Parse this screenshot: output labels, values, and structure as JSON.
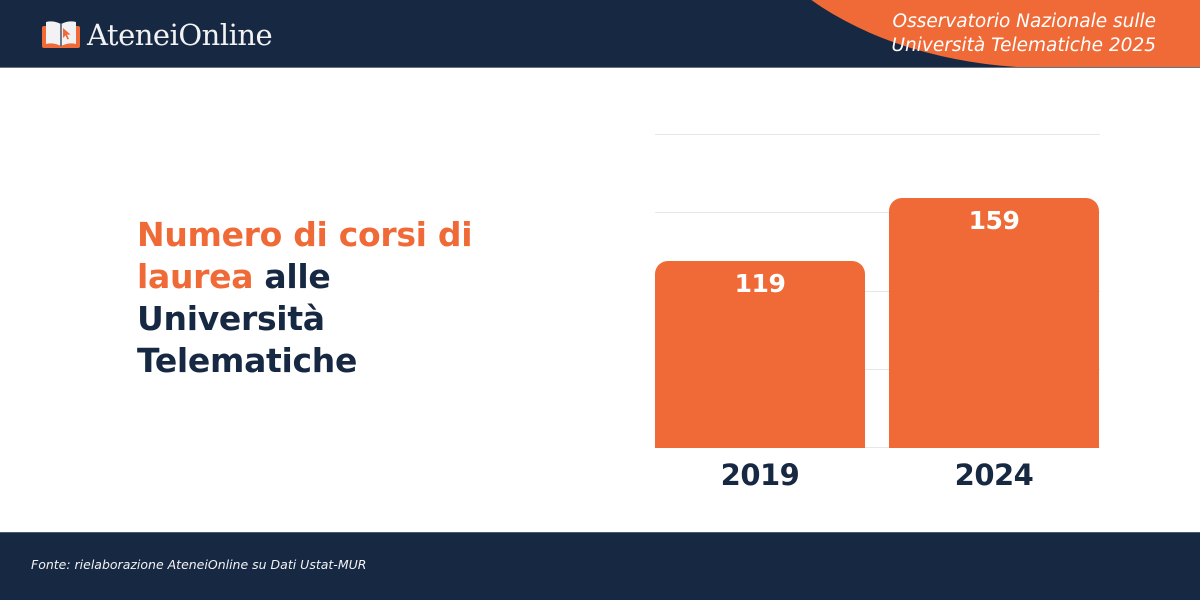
{
  "header": {
    "logo_text": "AteneiOnline",
    "logo_icon": "open-book-cursor-icon",
    "tagline_line1": "Osservatorio Nazionale sulle",
    "tagline_line2": "Università Telematiche 2025",
    "colors": {
      "navy": "#172842",
      "orange": "#f06a37"
    }
  },
  "title": {
    "accent_part": "Numero di corsi di laurea",
    "rest_part": "alle Università Telematiche"
  },
  "chart_data": {
    "type": "bar",
    "title": "Numero di corsi di laurea alle Università Telematiche",
    "categories": [
      "2019",
      "2024"
    ],
    "values": [
      119,
      159
    ],
    "series": [
      {
        "name": "Corsi di laurea",
        "values": [
          119,
          159
        ],
        "color": "#f06a37"
      }
    ],
    "xlabel": "",
    "ylabel": "",
    "ylim": [
      0,
      200
    ],
    "gridlines": [
      0,
      50,
      100,
      150,
      200
    ],
    "grid": true,
    "data_labels": [
      "119",
      "159"
    ],
    "legend": null
  },
  "footer": {
    "source": "Fonte: rielaborazione AteneiOnline su Dati Ustat-MUR"
  }
}
